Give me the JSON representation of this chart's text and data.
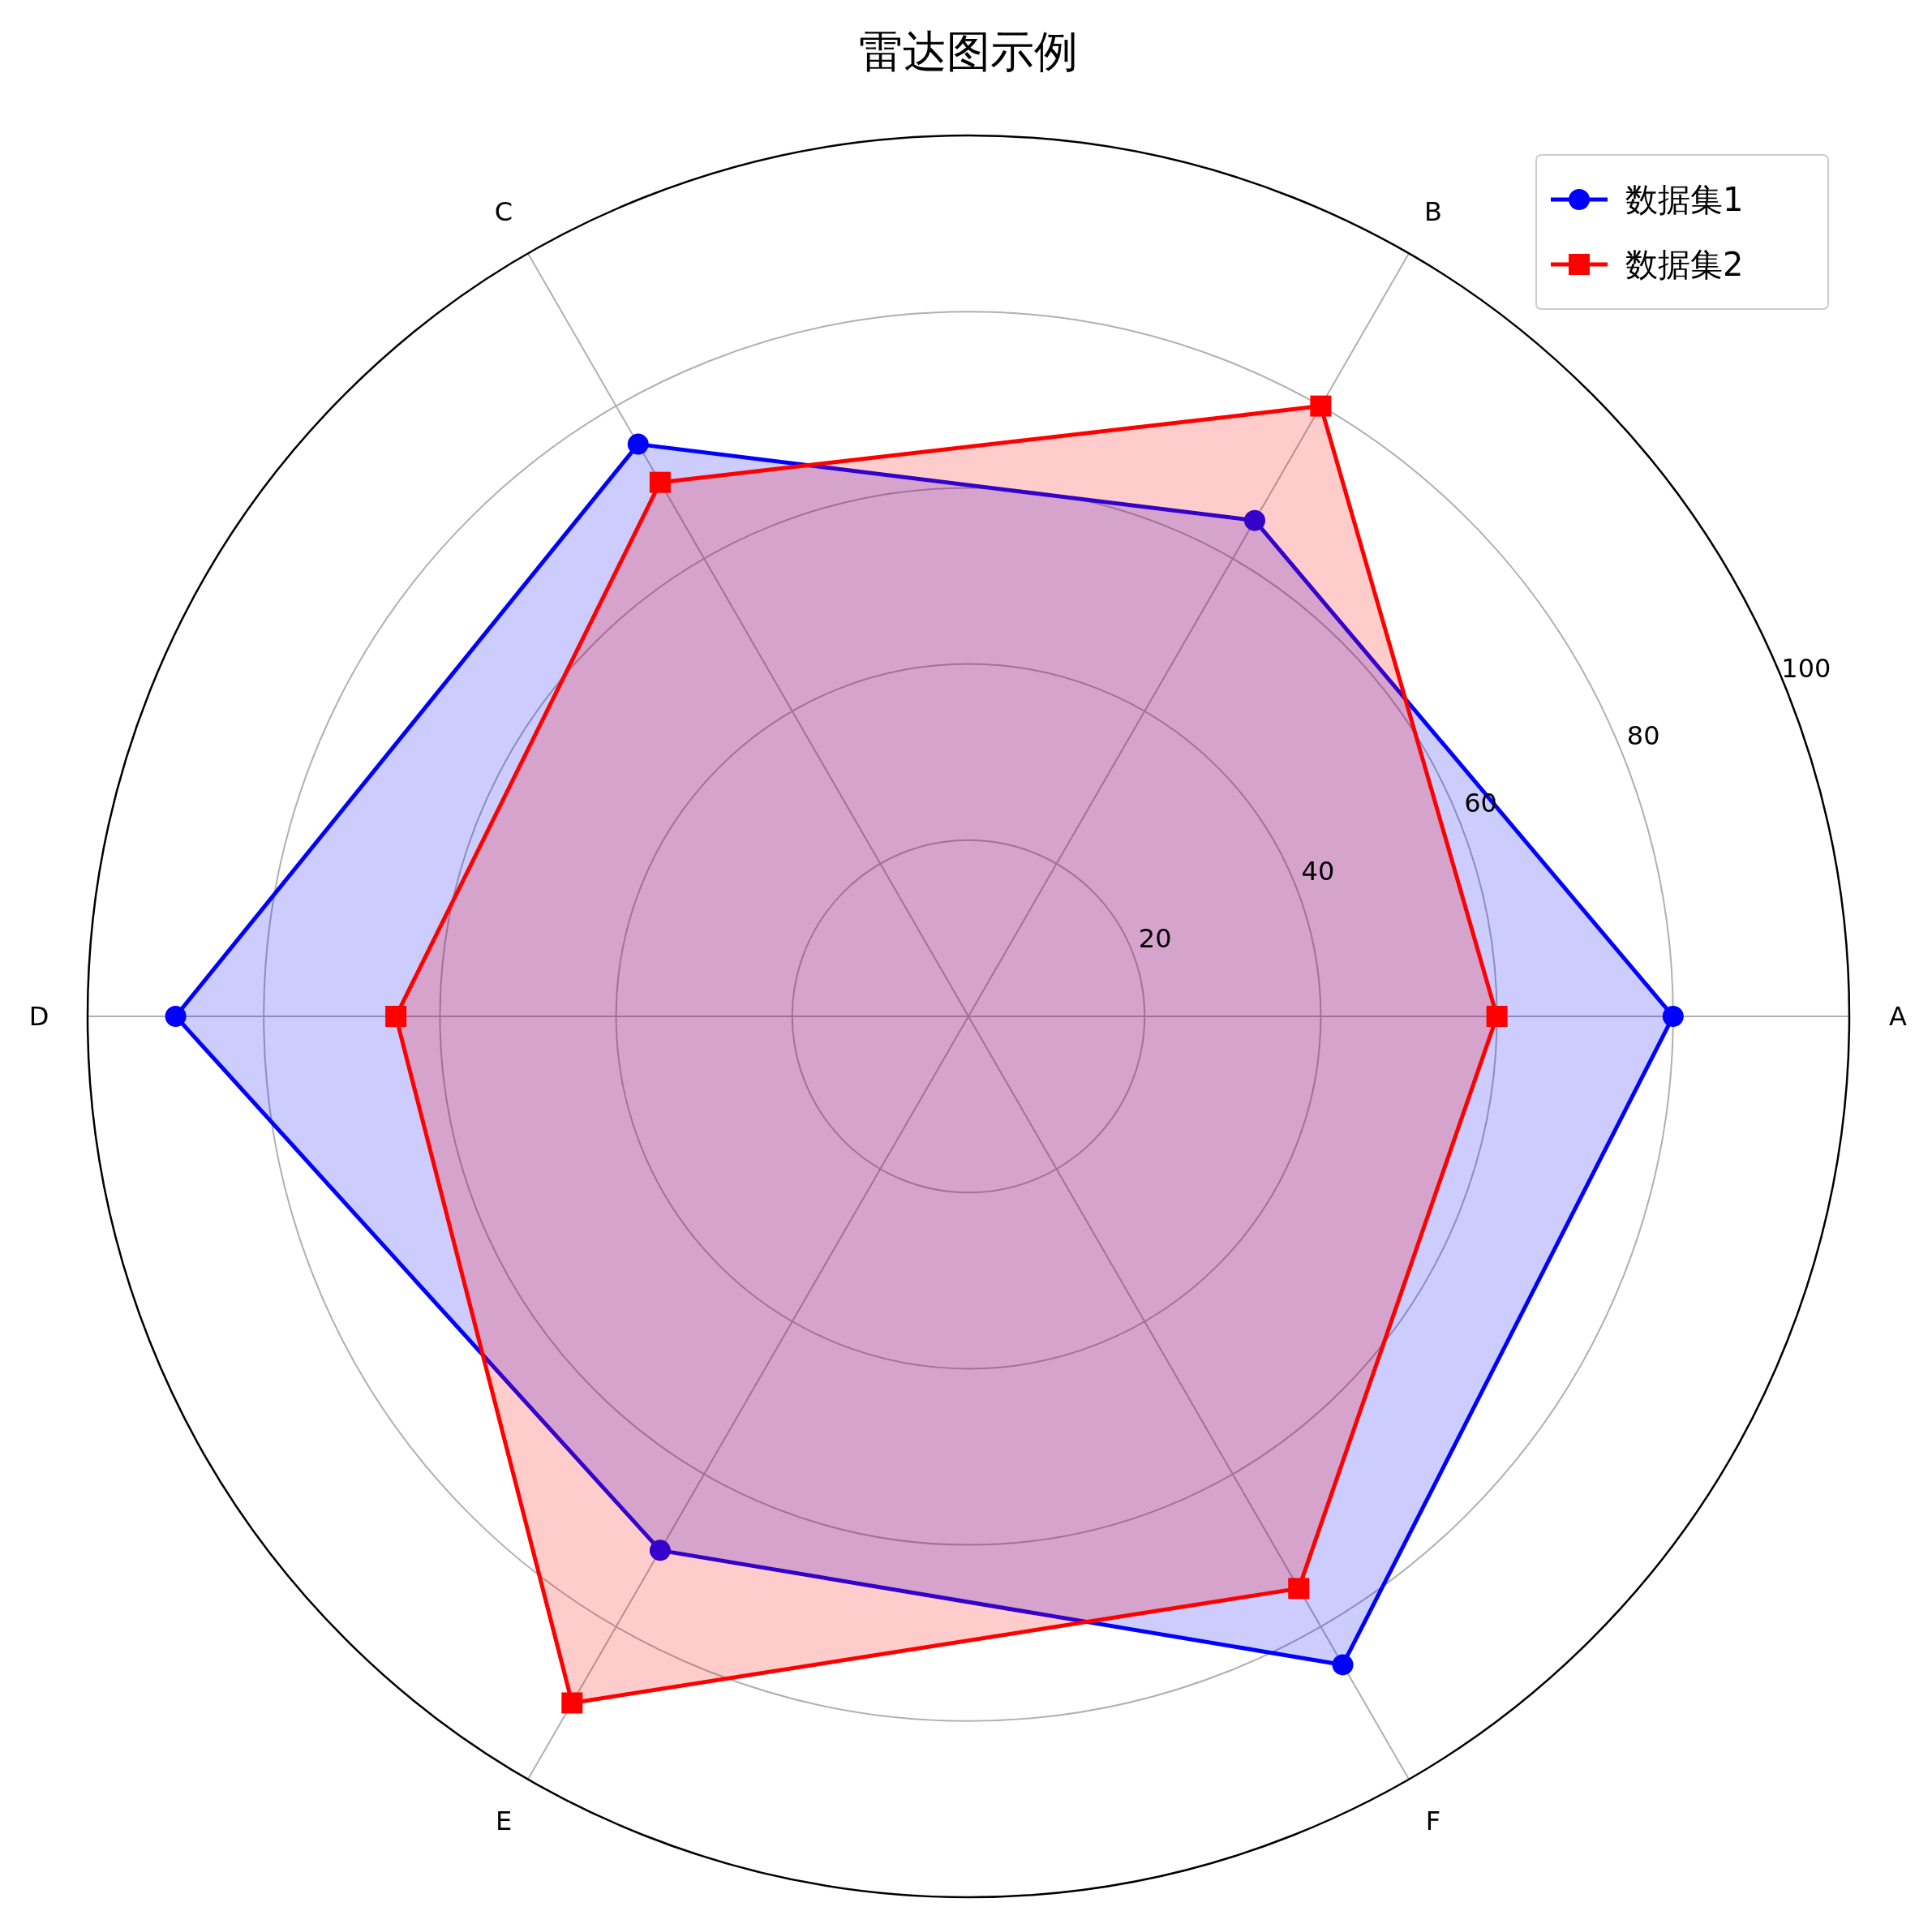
{
  "chart_data": {
    "type": "radar",
    "title": "雷达图示例",
    "categories": [
      "B",
      "A",
      "F",
      "E",
      "D",
      "C"
    ],
    "series": [
      {
        "name": "数据集1",
        "color": "#0000ff",
        "marker": "circle",
        "values": [
          65,
          80,
          85,
          70,
          90,
          75
        ]
      },
      {
        "name": "数据集2",
        "color": "#ff0000",
        "marker": "square",
        "values": [
          80,
          60,
          75,
          90,
          65,
          70
        ]
      }
    ],
    "ylim": [
      0,
      100
    ],
    "yticks": [
      20,
      40,
      60,
      80,
      100
    ],
    "grid": true,
    "legend": "top right",
    "line_style": "solid"
  }
}
